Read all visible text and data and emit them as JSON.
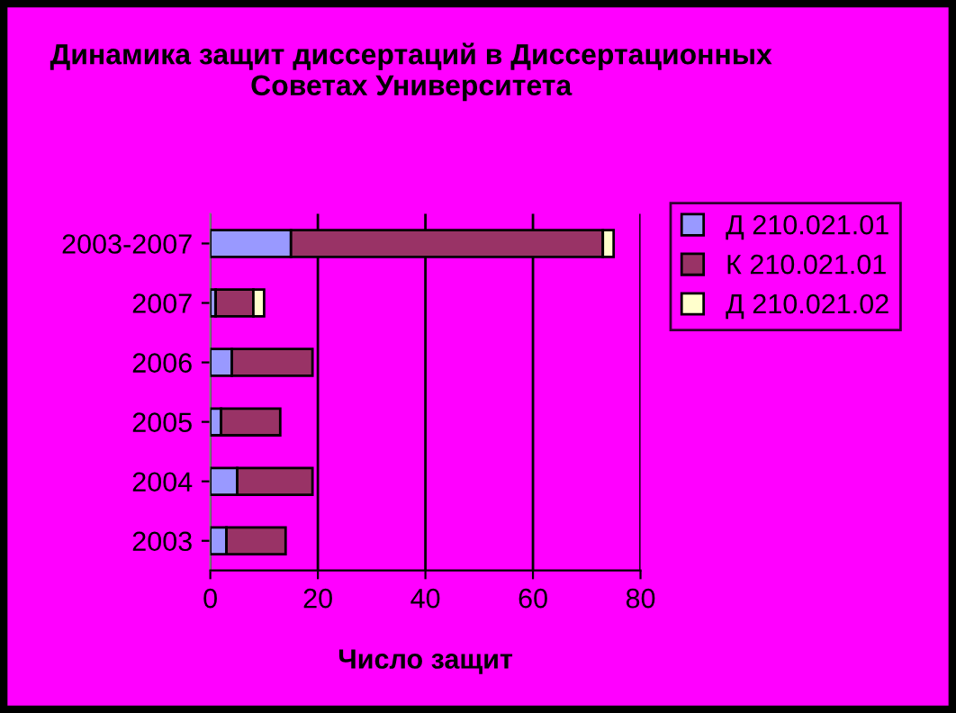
{
  "chart_data": {
    "type": "bar",
    "orientation": "horizontal",
    "stacked": true,
    "title": "Динамика защит диссертаций в Диссертационных Советах Университета",
    "xlabel": "Число защит",
    "categories": [
      "2003-2007",
      "2007",
      "2006",
      "2005",
      "2004",
      "2003"
    ],
    "series": [
      {
        "name": "Д 210.021.01",
        "color": "#9999ff",
        "values": [
          15,
          1,
          4,
          2,
          5,
          3
        ]
      },
      {
        "name": "К 210.021.01",
        "color": "#993366",
        "values": [
          58,
          7,
          15,
          11,
          14,
          11
        ]
      },
      {
        "name": "Д 210.021.02",
        "color": "#ffffcc",
        "values": [
          2,
          2,
          null,
          null,
          null,
          null
        ]
      }
    ],
    "xlim": [
      0,
      80
    ],
    "xticks": [
      0,
      20,
      40,
      60,
      80
    ],
    "grid": "x",
    "legend": "right"
  }
}
